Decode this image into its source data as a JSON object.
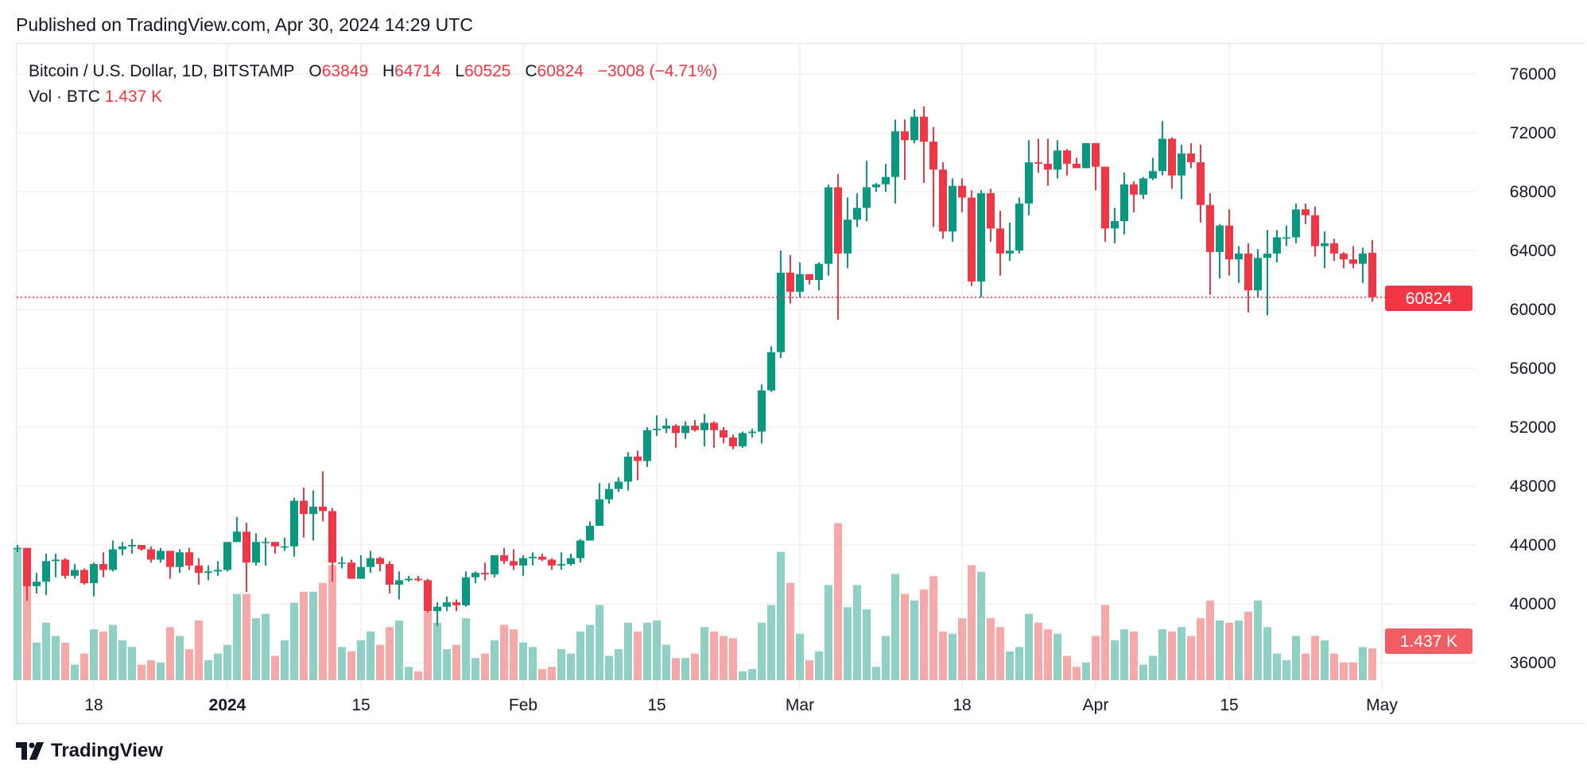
{
  "published": "Published on TradingView.com, Apr 30, 2024 14:29 UTC",
  "legend": {
    "symbol": "Bitcoin / U.S. Dollar, 1D, BITSTAMP",
    "o_label": "O",
    "o": "63849",
    "h_label": "H",
    "h": "64714",
    "l_label": "L",
    "l": "60525",
    "c_label": "C",
    "c": "60824",
    "change": "−3008 (−4.71%)",
    "vol_label": "Vol · BTC",
    "vol": "1.437 K"
  },
  "footer": {
    "brand": "TradingView",
    "logo_icon": "tradingview-logo-icon"
  },
  "colors": {
    "up": "#089981",
    "down": "#f23645",
    "up_volume": "#8fd1c4",
    "down_volume": "#f7a9a9",
    "grid": "#f0f1f3"
  },
  "chart_data": {
    "type": "candlestick",
    "title": "Bitcoin / U.S. Dollar, 1D, BITSTAMP",
    "ylim": [
      36000,
      76000
    ],
    "y_ticks": [
      "36000",
      "40000",
      "44000",
      "48000",
      "52000",
      "56000",
      "60000",
      "64000",
      "68000",
      "72000",
      "76000"
    ],
    "x_ticks": [
      {
        "date": "2023-12-18",
        "label": "18",
        "bold": false
      },
      {
        "date": "2024-01-01",
        "label": "2024",
        "bold": true
      },
      {
        "date": "2024-01-15",
        "label": "15",
        "bold": false
      },
      {
        "date": "2024-02-01",
        "label": "Feb",
        "bold": false
      },
      {
        "date": "2024-02-15",
        "label": "15",
        "bold": false
      },
      {
        "date": "2024-03-01",
        "label": "Mar",
        "bold": false
      },
      {
        "date": "2024-03-18",
        "label": "18",
        "bold": false
      },
      {
        "date": "2024-04-01",
        "label": "Apr",
        "bold": false
      },
      {
        "date": "2024-04-15",
        "label": "15",
        "bold": false
      },
      {
        "date": "2024-05-01",
        "label": "May",
        "bold": false
      }
    ],
    "grid": true,
    "last_price_label": "60824",
    "last_price": 60824,
    "volume_label": "1.437 K",
    "volume_unit": "K BTC",
    "columns": [
      "date",
      "open",
      "high",
      "low",
      "close",
      "volume"
    ],
    "candles": [
      [
        "2023-12-10",
        43700,
        44000,
        43500,
        43800,
        5.9
      ],
      [
        "2023-12-11",
        43800,
        43800,
        40200,
        41200,
        5.5
      ],
      [
        "2023-12-12",
        41200,
        42100,
        40700,
        41500,
        1.7
      ],
      [
        "2023-12-13",
        41500,
        43400,
        40600,
        42900,
        2.6
      ],
      [
        "2023-12-14",
        42900,
        43400,
        41800,
        43000,
        2.0
      ],
      [
        "2023-12-15",
        43000,
        43100,
        41700,
        41900,
        1.7
      ],
      [
        "2023-12-16",
        41900,
        42700,
        41700,
        42300,
        0.7
      ],
      [
        "2023-12-17",
        42300,
        42400,
        41300,
        41400,
        1.2
      ],
      [
        "2023-12-18",
        41400,
        42800,
        40500,
        42700,
        2.3
      ],
      [
        "2023-12-19",
        42700,
        43500,
        41800,
        42300,
        2.2
      ],
      [
        "2023-12-20",
        42300,
        44300,
        42200,
        43700,
        2.5
      ],
      [
        "2023-12-21",
        43700,
        44200,
        43300,
        43900,
        1.8
      ],
      [
        "2023-12-22",
        43900,
        44400,
        43400,
        44000,
        1.5
      ],
      [
        "2023-12-23",
        44000,
        44000,
        43600,
        43700,
        0.7
      ],
      [
        "2023-12-24",
        43700,
        43900,
        42800,
        43000,
        0.9
      ],
      [
        "2023-12-25",
        43000,
        43800,
        42800,
        43600,
        0.8
      ],
      [
        "2023-12-26",
        43600,
        43600,
        41700,
        42500,
        2.4
      ],
      [
        "2023-12-27",
        42500,
        43700,
        42100,
        43500,
        2.0
      ],
      [
        "2023-12-28",
        43500,
        43800,
        42300,
        42600,
        1.4
      ],
      [
        "2023-12-29",
        42600,
        43100,
        41300,
        42100,
        2.7
      ],
      [
        "2023-12-30",
        42100,
        42600,
        41600,
        42200,
        0.9
      ],
      [
        "2023-12-31",
        42200,
        42900,
        41900,
        42300,
        1.2
      ],
      [
        "2024-01-01",
        42300,
        44200,
        42200,
        44200,
        1.6
      ],
      [
        "2024-01-02",
        44200,
        45900,
        44200,
        44900,
        3.9
      ],
      [
        "2024-01-03",
        44900,
        45500,
        40800,
        42800,
        3.9
      ],
      [
        "2024-01-04",
        42800,
        44800,
        42600,
        44200,
        2.8
      ],
      [
        "2024-01-05",
        44200,
        44500,
        42600,
        44200,
        3.0
      ],
      [
        "2024-01-06",
        44200,
        44200,
        43400,
        43900,
        1.1
      ],
      [
        "2024-01-07",
        43900,
        44500,
        43600,
        43900,
        1.8
      ],
      [
        "2024-01-08",
        43900,
        47200,
        43200,
        47000,
        3.5
      ],
      [
        "2024-01-09",
        47000,
        47900,
        44500,
        46100,
        4.0
      ],
      [
        "2024-01-10",
        46100,
        47700,
        44300,
        46600,
        4.0
      ],
      [
        "2024-01-11",
        46600,
        49000,
        45600,
        46300,
        4.4
      ],
      [
        "2024-01-12",
        46300,
        46500,
        41500,
        42800,
        5.2
      ],
      [
        "2024-01-13",
        42800,
        43200,
        42400,
        42800,
        1.5
      ],
      [
        "2024-01-14",
        42800,
        43000,
        41700,
        41700,
        1.3
      ],
      [
        "2024-01-15",
        41700,
        43300,
        41700,
        42500,
        1.8
      ],
      [
        "2024-01-16",
        42500,
        43600,
        42100,
        43100,
        2.2
      ],
      [
        "2024-01-17",
        43100,
        43200,
        42200,
        42700,
        1.6
      ],
      [
        "2024-01-18",
        42700,
        42900,
        40700,
        41300,
        2.4
      ],
      [
        "2024-01-19",
        41300,
        42200,
        40300,
        41600,
        2.7
      ],
      [
        "2024-01-20",
        41600,
        41900,
        41500,
        41700,
        0.6
      ],
      [
        "2024-01-21",
        41700,
        41900,
        41500,
        41600,
        0.4
      ],
      [
        "2024-01-22",
        41600,
        41700,
        39400,
        39500,
        3.1
      ],
      [
        "2024-01-23",
        39500,
        40100,
        38500,
        39800,
        2.6
      ],
      [
        "2024-01-24",
        39800,
        40500,
        39500,
        40100,
        1.4
      ],
      [
        "2024-01-25",
        40100,
        40300,
        39500,
        39900,
        1.6
      ],
      [
        "2024-01-26",
        39900,
        42200,
        39800,
        41800,
        2.8
      ],
      [
        "2024-01-27",
        41800,
        42200,
        41400,
        42100,
        1.0
      ],
      [
        "2024-01-28",
        42100,
        42800,
        41600,
        42000,
        1.2
      ],
      [
        "2024-01-29",
        42000,
        43300,
        41800,
        43300,
        1.8
      ],
      [
        "2024-01-30",
        43300,
        43800,
        42700,
        42900,
        2.5
      ],
      [
        "2024-01-31",
        42900,
        43700,
        42300,
        42600,
        2.3
      ],
      [
        "2024-02-01",
        42600,
        43300,
        41900,
        43100,
        1.7
      ],
      [
        "2024-02-02",
        43100,
        43500,
        42600,
        43200,
        1.5
      ],
      [
        "2024-02-03",
        43200,
        43400,
        42900,
        43000,
        0.5
      ],
      [
        "2024-02-04",
        43000,
        43100,
        42300,
        42600,
        0.6
      ],
      [
        "2024-02-05",
        42600,
        43500,
        42300,
        42700,
        1.4
      ],
      [
        "2024-02-06",
        42700,
        43400,
        42600,
        43100,
        1.2
      ],
      [
        "2024-02-07",
        43100,
        44400,
        42800,
        44300,
        2.2
      ],
      [
        "2024-02-08",
        44300,
        45600,
        44300,
        45300,
        2.5
      ],
      [
        "2024-02-09",
        45300,
        48200,
        45300,
        47100,
        3.4
      ],
      [
        "2024-02-10",
        47100,
        48200,
        46800,
        47800,
        1.1
      ],
      [
        "2024-02-11",
        47800,
        48600,
        47600,
        48300,
        1.4
      ],
      [
        "2024-02-12",
        48300,
        50300,
        47700,
        50000,
        2.6
      ],
      [
        "2024-02-13",
        50000,
        50400,
        48400,
        49700,
        2.2
      ],
      [
        "2024-02-14",
        49700,
        52000,
        49300,
        51800,
        2.6
      ],
      [
        "2024-02-15",
        51800,
        52800,
        51400,
        51900,
        2.7
      ],
      [
        "2024-02-16",
        51900,
        52600,
        51600,
        52100,
        1.6
      ],
      [
        "2024-02-17",
        52100,
        52200,
        50600,
        51600,
        1.0
      ],
      [
        "2024-02-18",
        51600,
        52400,
        51200,
        52100,
        1.0
      ],
      [
        "2024-02-19",
        52100,
        52500,
        51700,
        51800,
        1.2
      ],
      [
        "2024-02-20",
        51800,
        52900,
        50700,
        52300,
        2.4
      ],
      [
        "2024-02-21",
        52300,
        52400,
        50600,
        51800,
        2.2
      ],
      [
        "2024-02-22",
        51800,
        52000,
        50900,
        51300,
        2.0
      ],
      [
        "2024-02-23",
        51300,
        51500,
        50500,
        50700,
        1.9
      ],
      [
        "2024-02-24",
        50700,
        51700,
        50600,
        51600,
        0.4
      ],
      [
        "2024-02-25",
        51600,
        51900,
        51300,
        51700,
        0.5
      ],
      [
        "2024-02-26",
        51700,
        54900,
        50900,
        54500,
        2.6
      ],
      [
        "2024-02-27",
        54500,
        57500,
        54400,
        57100,
        3.4
      ],
      [
        "2024-02-28",
        57100,
        64000,
        56700,
        62500,
        5.8
      ],
      [
        "2024-02-29",
        62500,
        63700,
        60400,
        61200,
        4.4
      ],
      [
        "2024-03-01",
        61200,
        63200,
        60800,
        62400,
        2.1
      ],
      [
        "2024-03-02",
        62400,
        62400,
        61700,
        62000,
        0.9
      ],
      [
        "2024-03-03",
        62000,
        63200,
        61300,
        63100,
        1.3
      ],
      [
        "2024-03-04",
        63100,
        68500,
        62300,
        68300,
        4.3
      ],
      [
        "2024-03-05",
        68300,
        69200,
        59300,
        63800,
        7.1
      ],
      [
        "2024-03-06",
        63800,
        67600,
        62800,
        66100,
        3.3
      ],
      [
        "2024-03-07",
        66100,
        67900,
        65600,
        66900,
        4.3
      ],
      [
        "2024-03-08",
        66900,
        70100,
        66000,
        68300,
        3.2
      ],
      [
        "2024-03-09",
        68300,
        68600,
        68000,
        68500,
        0.6
      ],
      [
        "2024-03-10",
        68500,
        69900,
        68000,
        69000,
        2.0
      ],
      [
        "2024-03-11",
        69000,
        72900,
        67200,
        72100,
        4.8
      ],
      [
        "2024-03-12",
        72100,
        72900,
        68800,
        71500,
        3.9
      ],
      [
        "2024-03-13",
        71500,
        73600,
        71300,
        73100,
        3.6
      ],
      [
        "2024-03-14",
        73100,
        73800,
        68600,
        71400,
        4.1
      ],
      [
        "2024-03-15",
        71400,
        72400,
        65600,
        69500,
        4.7
      ],
      [
        "2024-03-16",
        69500,
        70000,
        64800,
        65300,
        2.2
      ],
      [
        "2024-03-17",
        65300,
        68900,
        64600,
        68400,
        2.1
      ],
      [
        "2024-03-18",
        68400,
        68900,
        66600,
        67600,
        2.8
      ],
      [
        "2024-03-19",
        67600,
        68100,
        61600,
        61900,
        5.2
      ],
      [
        "2024-03-20",
        61900,
        68100,
        60800,
        67900,
        4.9
      ],
      [
        "2024-03-21",
        67900,
        68200,
        64600,
        65500,
        2.8
      ],
      [
        "2024-03-22",
        65500,
        66700,
        62300,
        63800,
        2.4
      ],
      [
        "2024-03-23",
        63800,
        65900,
        63300,
        64000,
        1.3
      ],
      [
        "2024-03-24",
        64000,
        67600,
        63800,
        67200,
        1.5
      ],
      [
        "2024-03-25",
        67200,
        71500,
        66400,
        70000,
        3.0
      ],
      [
        "2024-03-26",
        70000,
        71600,
        69300,
        69900,
        2.6
      ],
      [
        "2024-03-27",
        69900,
        71600,
        68400,
        69500,
        2.3
      ],
      [
        "2024-03-28",
        69500,
        71500,
        68900,
        70800,
        2.1
      ],
      [
        "2024-03-29",
        70800,
        70900,
        69100,
        69900,
        1.1
      ],
      [
        "2024-03-30",
        69900,
        70300,
        69600,
        69600,
        0.6
      ],
      [
        "2024-03-31",
        69600,
        71300,
        69600,
        71300,
        0.8
      ],
      [
        "2024-04-01",
        71300,
        71300,
        68100,
        69700,
        2.0
      ],
      [
        "2024-04-02",
        69700,
        69700,
        64600,
        65500,
        3.4
      ],
      [
        "2024-04-03",
        65500,
        66900,
        64500,
        66000,
        1.8
      ],
      [
        "2024-04-04",
        66000,
        69300,
        65100,
        68500,
        2.3
      ],
      [
        "2024-04-05",
        68500,
        68700,
        66600,
        67800,
        2.2
      ],
      [
        "2024-04-06",
        67800,
        69000,
        67500,
        68900,
        0.7
      ],
      [
        "2024-04-07",
        68900,
        70300,
        68800,
        69400,
        1.1
      ],
      [
        "2024-04-08",
        69400,
        72800,
        69100,
        71600,
        2.3
      ],
      [
        "2024-04-09",
        71600,
        71700,
        68200,
        69100,
        2.2
      ],
      [
        "2024-04-10",
        69100,
        71200,
        67500,
        70600,
        2.4
      ],
      [
        "2024-04-11",
        70600,
        71300,
        69600,
        70000,
        2.0
      ],
      [
        "2024-04-12",
        70000,
        71200,
        65900,
        67100,
        2.8
      ],
      [
        "2024-04-13",
        67100,
        67900,
        61000,
        63900,
        3.6
      ],
      [
        "2024-04-14",
        63900,
        65800,
        62100,
        65700,
        2.7
      ],
      [
        "2024-04-15",
        65700,
        66800,
        62300,
        63400,
        2.6
      ],
      [
        "2024-04-16",
        63400,
        64300,
        61800,
        63800,
        2.7
      ],
      [
        "2024-04-17",
        63800,
        64500,
        59800,
        61300,
        3.1
      ],
      [
        "2024-04-18",
        61300,
        64100,
        60800,
        63500,
        3.6
      ],
      [
        "2024-04-19",
        63500,
        65400,
        59600,
        63800,
        2.4
      ],
      [
        "2024-04-20",
        63800,
        65400,
        63200,
        64900,
        1.2
      ],
      [
        "2024-04-21",
        64900,
        65700,
        64300,
        64900,
        0.9
      ],
      [
        "2024-04-22",
        64900,
        67200,
        64500,
        66800,
        2.0
      ],
      [
        "2024-04-23",
        66800,
        67200,
        65800,
        66400,
        1.2
      ],
      [
        "2024-04-24",
        66400,
        67000,
        63600,
        64300,
        2.0
      ],
      [
        "2024-04-25",
        64300,
        65300,
        62800,
        64500,
        1.8
      ],
      [
        "2024-04-26",
        64500,
        64800,
        63300,
        63800,
        1.2
      ],
      [
        "2024-04-27",
        63800,
        63900,
        62800,
        63400,
        0.8
      ],
      [
        "2024-04-28",
        63400,
        64300,
        62800,
        63100,
        0.8
      ],
      [
        "2024-04-29",
        63100,
        64200,
        61800,
        63800,
        1.5
      ],
      [
        "2024-04-30",
        63849,
        64714,
        60525,
        60824,
        1.437
      ]
    ]
  }
}
